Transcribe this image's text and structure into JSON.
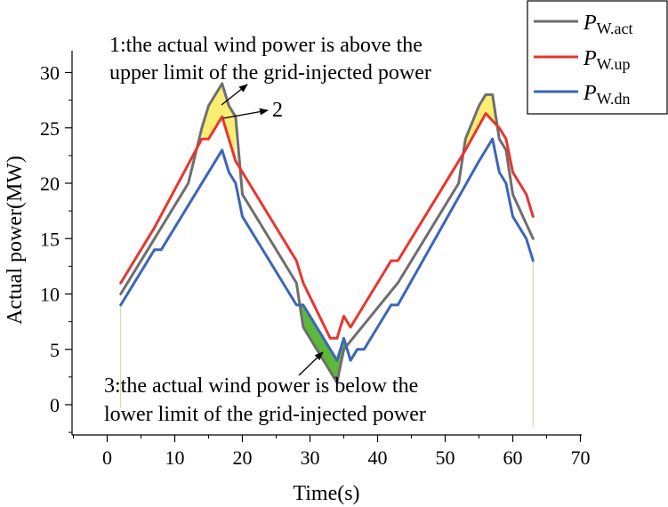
{
  "chart_data": {
    "type": "line",
    "title": "",
    "xlabel": "Time(s)",
    "ylabel": "Actual power(MW)",
    "xlim": [
      -5,
      70
    ],
    "ylim": [
      -2.5,
      32
    ],
    "xticks": [
      0,
      10,
      20,
      30,
      40,
      50,
      60,
      70
    ],
    "yticks": [
      0,
      5,
      10,
      15,
      20,
      25,
      30
    ],
    "grid": false,
    "legend_position": "top-right",
    "series": [
      {
        "key": "act",
        "name_main": "P",
        "name_sub": "W.act",
        "color": "#6e6e6e",
        "points": [
          [
            2,
            10
          ],
          [
            7,
            15
          ],
          [
            12,
            20
          ],
          [
            14,
            25
          ],
          [
            15,
            27
          ],
          [
            17,
            29
          ],
          [
            18,
            27
          ],
          [
            19,
            26
          ],
          [
            20,
            19
          ],
          [
            27,
            12
          ],
          [
            28,
            11
          ],
          [
            29,
            7
          ],
          [
            34,
            2
          ],
          [
            35,
            5
          ],
          [
            43,
            11
          ],
          [
            52,
            20
          ],
          [
            53,
            24
          ],
          [
            55,
            27
          ],
          [
            56,
            28
          ],
          [
            57,
            28
          ],
          [
            58,
            24
          ],
          [
            59,
            23
          ],
          [
            60,
            19
          ],
          [
            63,
            15
          ]
        ]
      },
      {
        "key": "up",
        "name_main": "P",
        "name_sub": "W.up",
        "color": "#e8362f",
        "points": [
          [
            2,
            11
          ],
          [
            7,
            16
          ],
          [
            14,
            24
          ],
          [
            15,
            24
          ],
          [
            17,
            26
          ],
          [
            19,
            22
          ],
          [
            27,
            14
          ],
          [
            28,
            13
          ],
          [
            29,
            11
          ],
          [
            33,
            6
          ],
          [
            34,
            6
          ],
          [
            35,
            8
          ],
          [
            36,
            7
          ],
          [
            42,
            13
          ],
          [
            43,
            13
          ],
          [
            53,
            23
          ],
          [
            56,
            26.3
          ],
          [
            58,
            25
          ],
          [
            59,
            24
          ],
          [
            60,
            21
          ],
          [
            62,
            19
          ],
          [
            63,
            17
          ]
        ]
      },
      {
        "key": "dn",
        "name_main": "P",
        "name_sub": "W.dn",
        "color": "#3b66b8",
        "points": [
          [
            2,
            9
          ],
          [
            7,
            14
          ],
          [
            8,
            14
          ],
          [
            17,
            23
          ],
          [
            18,
            21
          ],
          [
            19,
            20
          ],
          [
            20,
            17
          ],
          [
            28,
            9
          ],
          [
            29,
            9
          ],
          [
            34,
            4
          ],
          [
            35,
            6
          ],
          [
            36,
            4
          ],
          [
            37,
            5
          ],
          [
            38,
            5
          ],
          [
            42,
            9
          ],
          [
            43,
            9
          ],
          [
            55,
            22
          ],
          [
            57,
            24
          ],
          [
            58,
            21
          ],
          [
            59,
            20
          ],
          [
            60,
            17
          ],
          [
            62,
            15
          ],
          [
            63,
            13
          ]
        ]
      }
    ],
    "fills": [
      {
        "kind": "above",
        "color": "#f9ed74",
        "x_range": [
          14,
          19
        ]
      },
      {
        "kind": "above",
        "color": "#f9ed74",
        "x_range": [
          53,
          58
        ]
      },
      {
        "kind": "below",
        "color": "#5cb83a",
        "x_range": [
          28,
          36
        ]
      }
    ],
    "annotations": [
      {
        "id": "ann-1",
        "lines": [
          "1:the actual wind power is above the",
          "upper limit of the grid-injected power"
        ]
      },
      {
        "id": "ann-2",
        "lines": [
          "2"
        ]
      },
      {
        "id": "ann-3",
        "lines": [
          "3:the actual wind power is below the",
          "lower limit of the grid-injected power"
        ]
      }
    ]
  }
}
